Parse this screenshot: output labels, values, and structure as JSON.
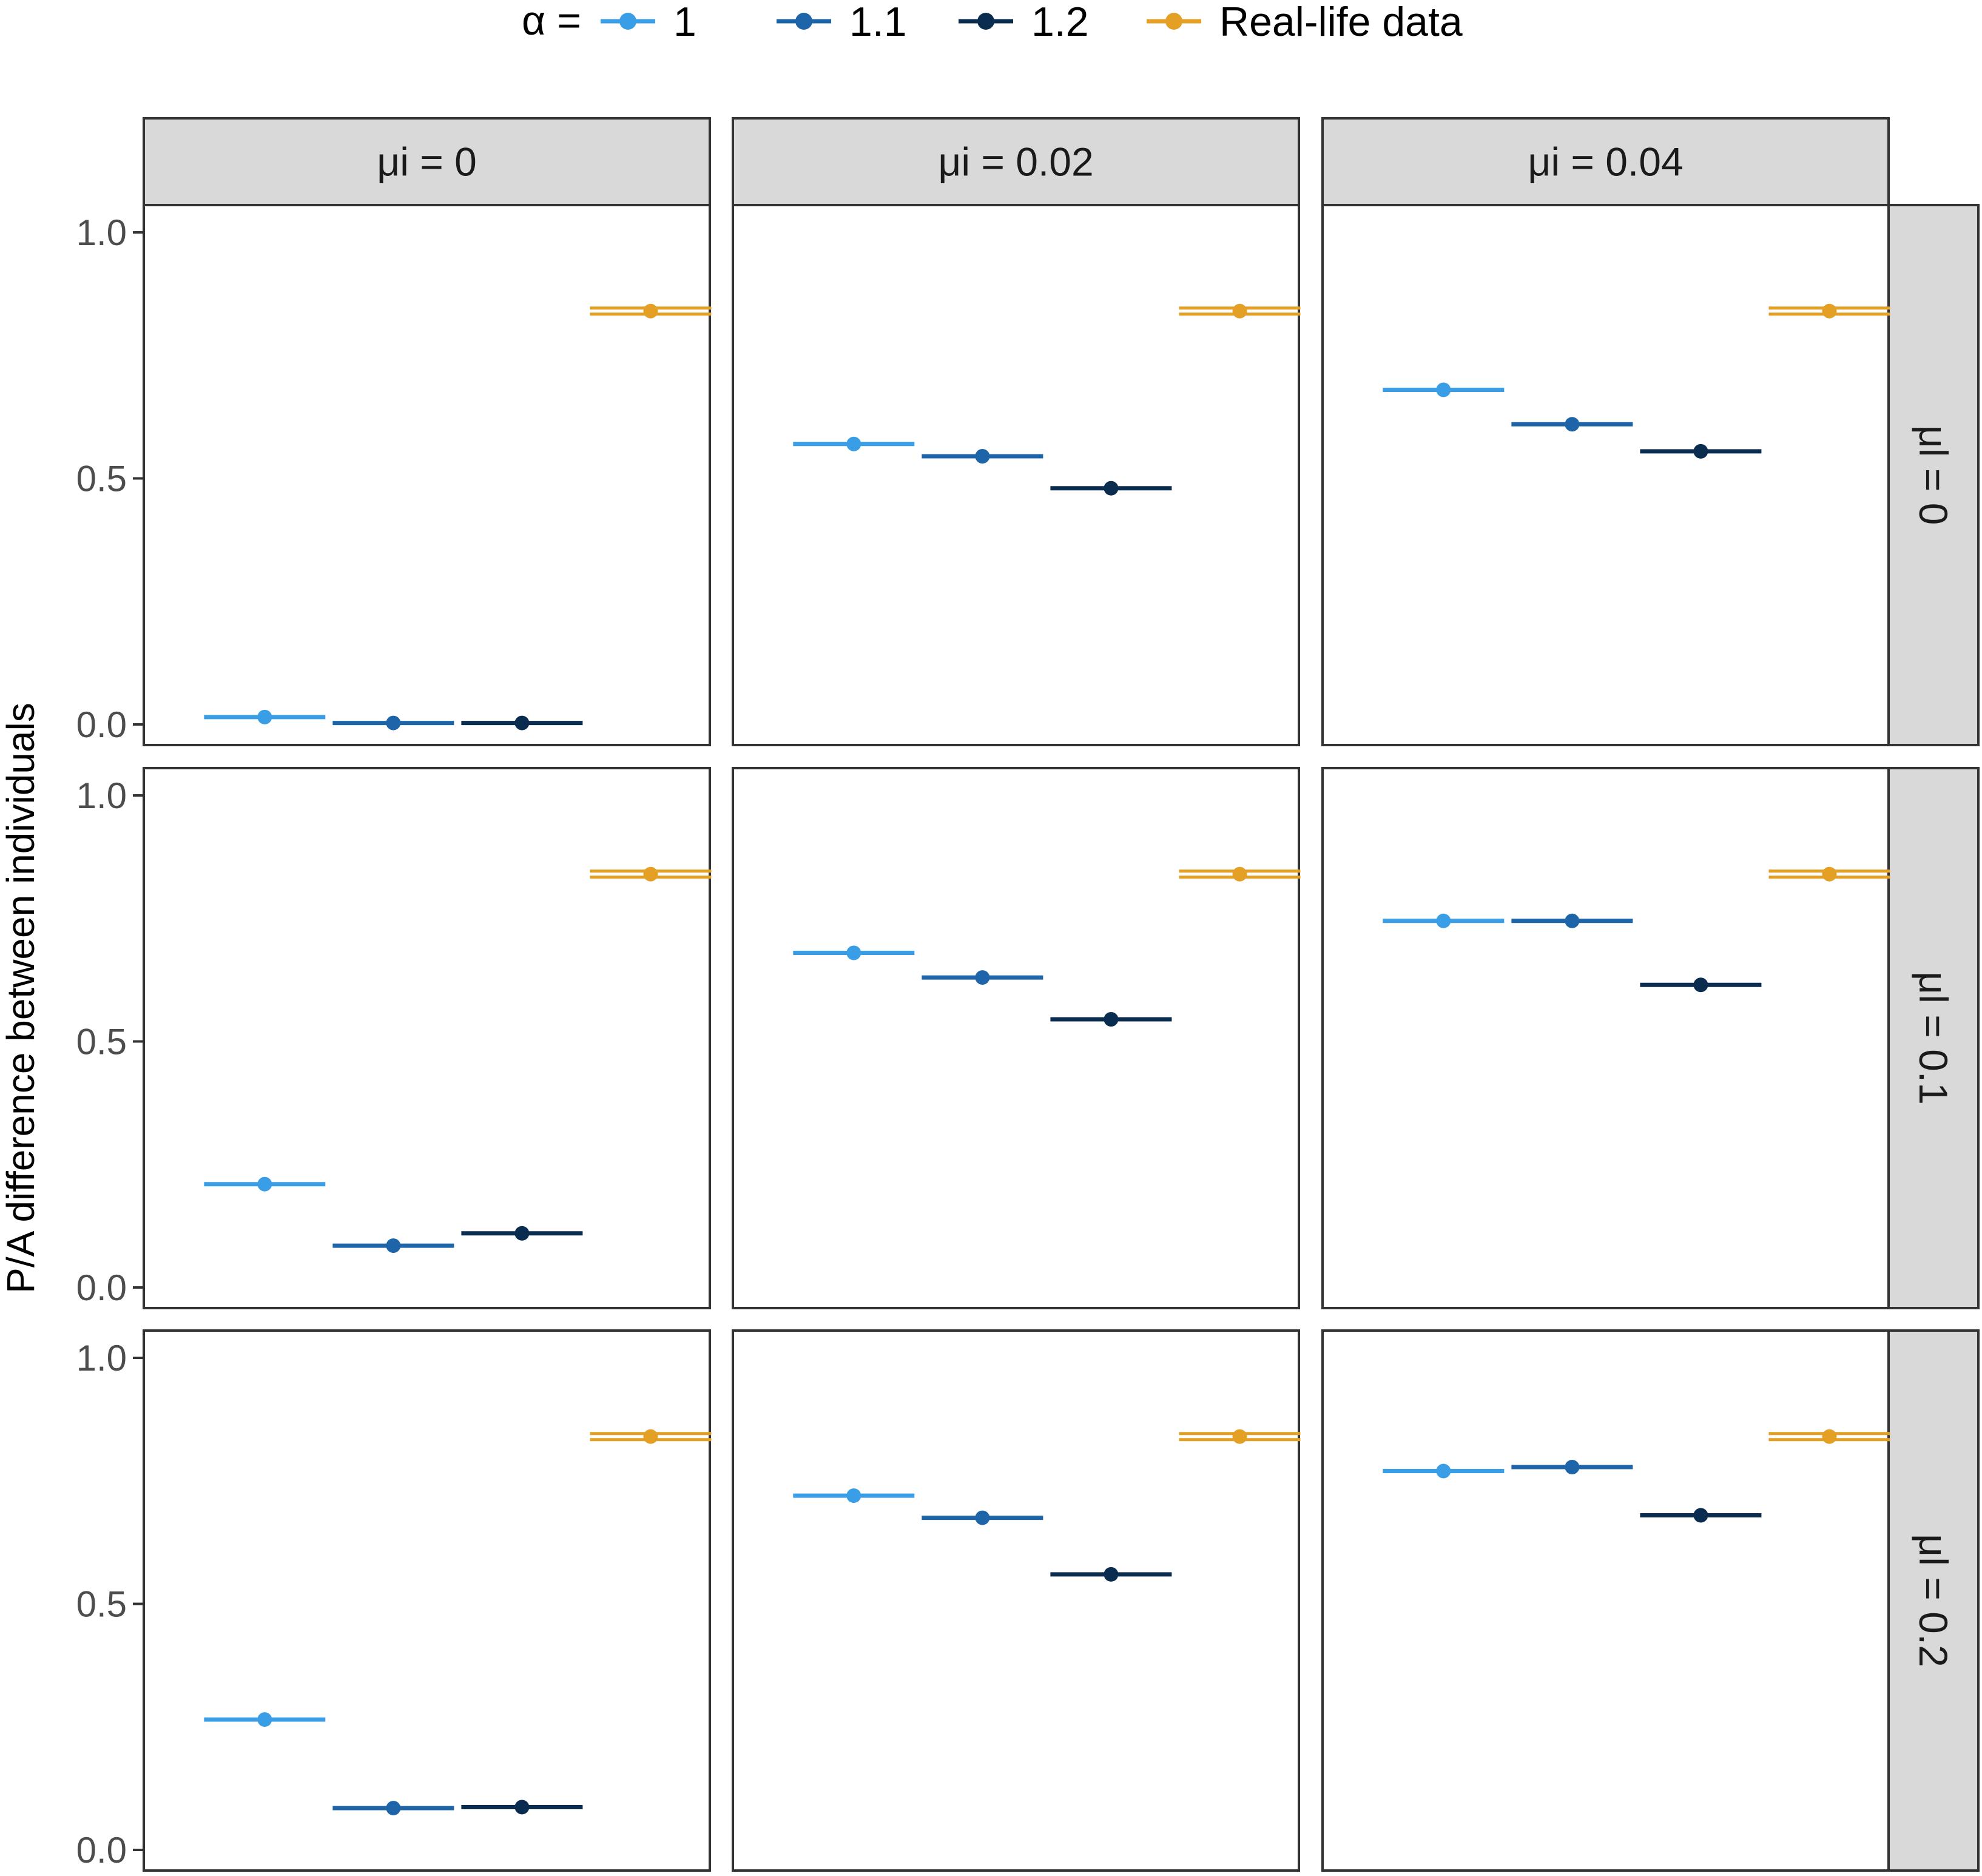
{
  "chart_data": {
    "type": "scatter",
    "ylabel": "P/A difference between individuals",
    "ylim": [
      0,
      1
    ],
    "yticks": [
      "0.0",
      "0.5",
      "1.0"
    ],
    "grid": false,
    "legend": {
      "title": "α =",
      "position": "top",
      "entries": [
        {
          "label": "1",
          "color": "#3a9ee6"
        },
        {
          "label": "1.1",
          "color": "#1d64a8"
        },
        {
          "label": "1.2",
          "color": "#0a2c4e"
        },
        {
          "label": "Real-life data",
          "color": "#e3a025"
        }
      ]
    },
    "column_strips": [
      "μi = 0",
      "μi = 0.02",
      "μi = 0.04"
    ],
    "row_strips": [
      "μl = 0",
      "μl = 0.1",
      "μl = 0.2"
    ],
    "categories": [
      "1",
      "1.1",
      "1.2",
      "Real-life data"
    ],
    "panels": [
      {
        "row": 0,
        "col": 0,
        "values": [
          0.015,
          0.003,
          0.003,
          0.84
        ]
      },
      {
        "row": 0,
        "col": 1,
        "values": [
          0.57,
          0.545,
          0.48,
          0.84
        ]
      },
      {
        "row": 0,
        "col": 2,
        "values": [
          0.68,
          0.61,
          0.555,
          0.84
        ]
      },
      {
        "row": 1,
        "col": 0,
        "values": [
          0.21,
          0.085,
          0.11,
          0.84
        ]
      },
      {
        "row": 1,
        "col": 1,
        "values": [
          0.68,
          0.63,
          0.545,
          0.84
        ]
      },
      {
        "row": 1,
        "col": 2,
        "values": [
          0.745,
          0.745,
          0.615,
          0.84
        ]
      },
      {
        "row": 2,
        "col": 0,
        "values": [
          0.265,
          0.085,
          0.087,
          0.84
        ]
      },
      {
        "row": 2,
        "col": 1,
        "values": [
          0.72,
          0.675,
          0.56,
          0.84
        ]
      },
      {
        "row": 2,
        "col": 2,
        "values": [
          0.77,
          0.778,
          0.68,
          0.84
        ]
      }
    ]
  }
}
